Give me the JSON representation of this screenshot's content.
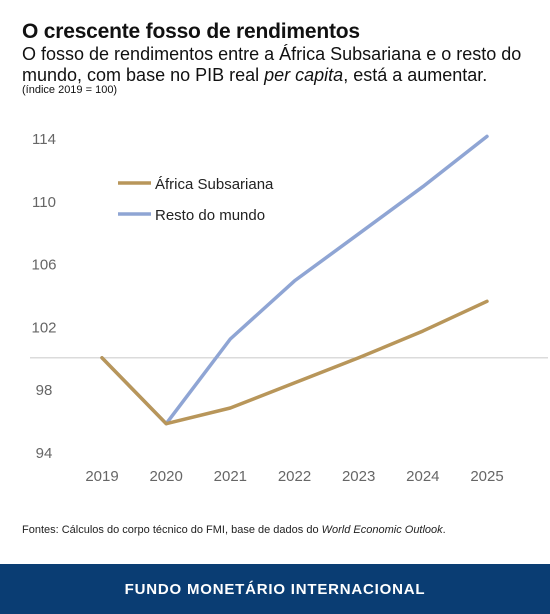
{
  "header": {
    "title": "O crescente fosso de rendimentos",
    "subtitle_main": "O fosso de rendimentos entre a África Subsariana e o resto do mundo, com base no PIB real ",
    "subtitle_em": "per capita",
    "subtitle_end": ", está a aumentar.",
    "note": "(índice 2019 = 100)"
  },
  "chart_data": {
    "type": "line",
    "title": "O crescente fosso de rendimentos",
    "ylabel": "índice 2019 = 100",
    "xlabel": "",
    "x": [
      "2019",
      "2020",
      "2021",
      "2022",
      "2023",
      "2024",
      "2025"
    ],
    "ylim": [
      94,
      115
    ],
    "yticks": [
      94,
      98,
      102,
      106,
      110,
      114
    ],
    "reference_line": 100,
    "legend_position": "top-left",
    "grid": false,
    "series": [
      {
        "name": "África Subsariana",
        "color": "#b8965a",
        "values": [
          100,
          95.8,
          96.8,
          98.4,
          100,
          101.7,
          103.6
        ]
      },
      {
        "name": "Resto do mundo",
        "color": "#8fa5d4",
        "values": [
          100,
          95.8,
          101.2,
          104.9,
          107.9,
          110.9,
          114.1
        ]
      }
    ]
  },
  "source": {
    "text_main": "Fontes: Cálculos do corpo técnico do FMI, base de dados do ",
    "text_em": "World Economic Outlook",
    "text_end": "."
  },
  "footer": {
    "label": "FUNDO MONETÁRIO INTERNACIONAL"
  }
}
